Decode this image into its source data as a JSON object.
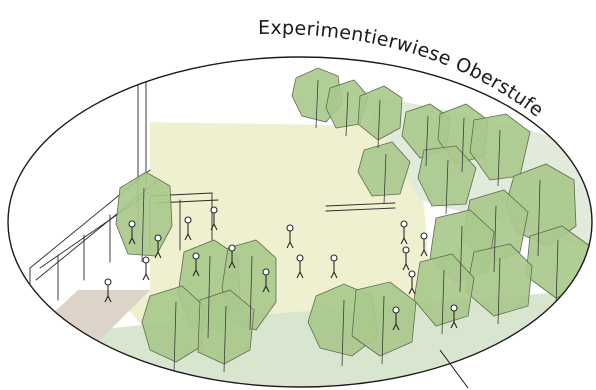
{
  "caption": "Experimentierwiese Oberstufe",
  "colors": {
    "meadow": "#eef0cf",
    "canopy": "#a9c98c",
    "canopy_dark": "#8fb673",
    "path": "#ddd3c9",
    "ground_shadow": "#d9e6cf",
    "ink": "#1a1a1a"
  }
}
